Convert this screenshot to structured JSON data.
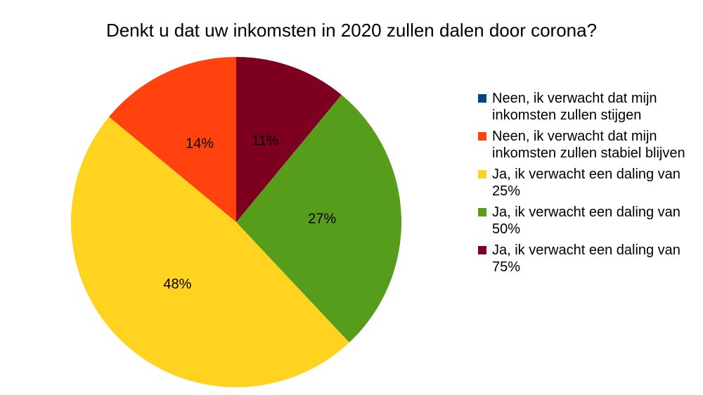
{
  "chart_data": {
    "type": "pie",
    "title": "Denkt u dat uw inkomsten in 2020 zullen dalen door corona?",
    "categories": [
      "Neen, ik verwacht dat mijn inkomsten zullen stijgen",
      "Neen, ik verwacht dat mijn inkomsten zullen stabiel blijven",
      "Ja, ik verwacht een daling van 25%",
      "Ja, ik verwacht een daling van 50%",
      "Ja, ik verwacht een daling van 75%"
    ],
    "values": [
      0,
      14,
      48,
      27,
      11
    ],
    "value_labels": [
      null,
      "14%",
      "48%",
      "27%",
      "11%"
    ],
    "colors": [
      "#004586",
      "#ff420e",
      "#ffd320",
      "#579d1c",
      "#7e0021"
    ],
    "legend": "right"
  }
}
